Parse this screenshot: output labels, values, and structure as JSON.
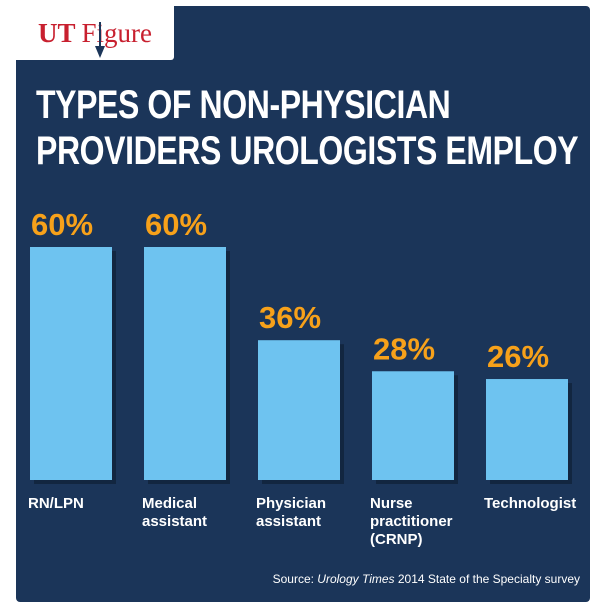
{
  "brand": {
    "ut": "UT",
    "figure": "Figure"
  },
  "title_lines": [
    "TYPES OF NON-PHYSICIAN",
    "PROVIDERS UROLOGISTS EMPLOY"
  ],
  "source": {
    "prefix": "Source: ",
    "publication": "Urology Times",
    "suffix": " 2014 State of the Specialty survey"
  },
  "colors": {
    "background": "#1b3559",
    "bar": "#6ec3f0",
    "value_label": "#f7a11a",
    "text": "#ffffff",
    "brand": "#c8202f"
  },
  "chart_data": {
    "type": "bar",
    "categories": [
      "RN/LPN",
      "Medical assistant",
      "Physician assistant",
      "Nurse practitioner (CRNP)",
      "Technologist"
    ],
    "category_lines": [
      [
        "RN/LPN"
      ],
      [
        "Medical",
        "assistant"
      ],
      [
        "Physician",
        "assistant"
      ],
      [
        "Nurse",
        "practitioner",
        "(CRNP)"
      ],
      [
        "Technologist"
      ]
    ],
    "values": [
      60,
      60,
      36,
      28,
      26
    ],
    "value_labels": [
      "60%",
      "60%",
      "36%",
      "28%",
      "26%"
    ],
    "title": "TYPES OF NON-PHYSICIAN PROVIDERS UROLOGISTS EMPLOY",
    "xlabel": "",
    "ylabel": "",
    "ylim": [
      0,
      60
    ],
    "grid": false,
    "legend": "none"
  }
}
